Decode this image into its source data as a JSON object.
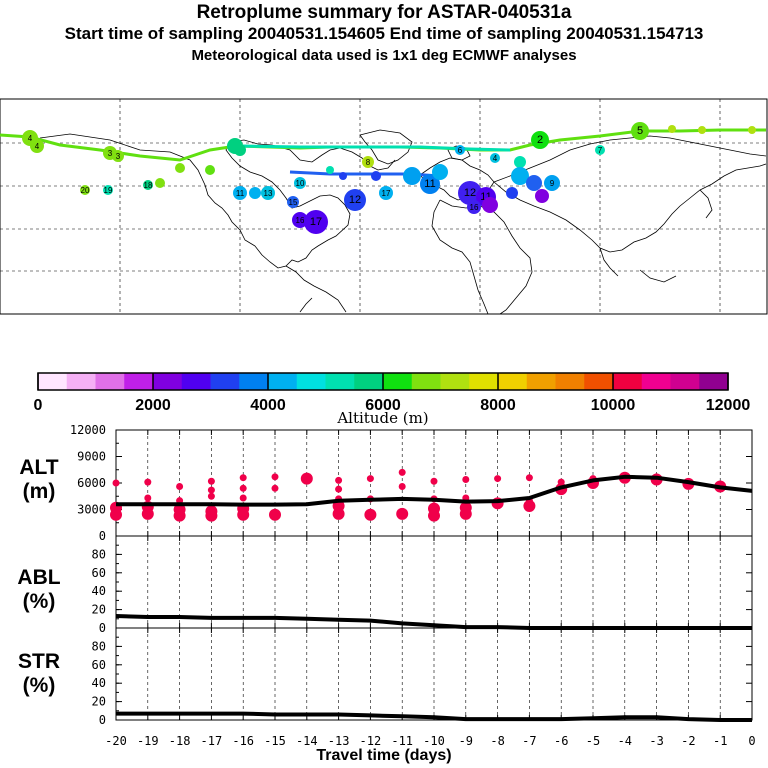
{
  "header": {
    "title": "Retroplume summary for ASTAR-040531a",
    "subtitle": "Start time of sampling 20040531.154605     End time of sampling 20040531.154713",
    "met_info": "Meteorological data used is 1x1 deg ECMWF analyses"
  },
  "colorbar": {
    "label": "Altitude (m)",
    "tick_labels": [
      "0",
      "2000",
      "4000",
      "6000",
      "8000",
      "10000",
      "12000"
    ],
    "colors": [
      "#ffe6ff",
      "#f5b0f5",
      "#e070e8",
      "#c020e8",
      "#8000e0",
      "#5000f0",
      "#2040f0",
      "#0080f0",
      "#00b0f0",
      "#00e0e0",
      "#00e0b0",
      "#00d080",
      "#10e010",
      "#80e010",
      "#b0e010",
      "#e0e000",
      "#f0d000",
      "#f0a000",
      "#f08000",
      "#f05000",
      "#f00040",
      "#f00090",
      "#d00090",
      "#900090"
    ]
  },
  "map": {
    "labels": [
      "4",
      "3",
      "2",
      "7",
      "5",
      "6",
      "4",
      "8",
      "9",
      "10",
      "11",
      "12",
      "13",
      "14",
      "15",
      "16",
      "17",
      "18",
      "19",
      "20"
    ]
  },
  "chart_data": [
    {
      "type": "line",
      "panel": "ALT",
      "ylabel": "ALT (m)",
      "ylim": [
        0,
        12000
      ],
      "yticks": [
        "0",
        "3000",
        "6000",
        "9000",
        "12000"
      ],
      "xlim": [
        -20,
        0
      ],
      "series": [
        {
          "name": "median altitude",
          "x": [
            -20,
            -19,
            -18,
            -17,
            -16,
            -15,
            -14,
            -13,
            -12,
            -11,
            -10,
            -9,
            -8,
            -7,
            -6,
            -5,
            -4,
            -3,
            -2,
            -1,
            0
          ],
          "values": [
            3600,
            3600,
            3600,
            3600,
            3550,
            3550,
            3600,
            4000,
            4100,
            4200,
            4100,
            3900,
            3950,
            4300,
            5500,
            6300,
            6700,
            6600,
            6100,
            5500,
            5100
          ]
        }
      ],
      "scatter_columns": [
        {
          "x": -20,
          "values": [
            2400,
            3200,
            6000
          ]
        },
        {
          "x": -19,
          "values": [
            2500,
            3300,
            4300,
            6100
          ]
        },
        {
          "x": -18,
          "values": [
            2300,
            3000,
            4000,
            5600
          ]
        },
        {
          "x": -17,
          "values": [
            2300,
            2800,
            4500,
            5200,
            6200
          ]
        },
        {
          "x": -16,
          "values": [
            2400,
            3100,
            4300,
            5400,
            6600
          ]
        },
        {
          "x": -15,
          "values": [
            2400,
            5400,
            6700
          ]
        },
        {
          "x": -14,
          "values": [
            6500
          ]
        },
        {
          "x": -13,
          "values": [
            2500,
            3400,
            4200,
            5300,
            6300
          ]
        },
        {
          "x": -12,
          "values": [
            2400,
            4200,
            6500
          ]
        },
        {
          "x": -11,
          "values": [
            2500,
            5600,
            7200
          ]
        },
        {
          "x": -10,
          "values": [
            2300,
            3100,
            4200,
            6200
          ]
        },
        {
          "x": -9,
          "values": [
            2500,
            3200,
            4300,
            6400
          ]
        },
        {
          "x": -8,
          "values": [
            3700,
            6500
          ]
        },
        {
          "x": -7,
          "values": [
            3400,
            4000,
            6600
          ]
        },
        {
          "x": -6,
          "values": [
            5300,
            6100
          ]
        },
        {
          "x": -5,
          "values": [
            6000,
            6500
          ]
        },
        {
          "x": -4,
          "values": [
            6600
          ]
        },
        {
          "x": -3,
          "values": [
            6400,
            6700
          ]
        },
        {
          "x": -2,
          "values": [
            5900
          ]
        },
        {
          "x": -1,
          "values": [
            5600
          ]
        }
      ]
    },
    {
      "type": "line",
      "panel": "ABL",
      "ylabel": "ABL (%)",
      "ylim": [
        0,
        100
      ],
      "yticks": [
        "0",
        "20",
        "40",
        "60",
        "80"
      ],
      "xlim": [
        -20,
        0
      ],
      "series": [
        {
          "name": "fraction in boundary layer",
          "x": [
            -20,
            -19,
            -18,
            -17,
            -16,
            -15,
            -14,
            -13,
            -12,
            -11,
            -10,
            -9,
            -8,
            -7,
            -6,
            -5,
            -4,
            -3,
            -2,
            -1,
            0
          ],
          "values": [
            13,
            12,
            12,
            11,
            11,
            11,
            10,
            9,
            8,
            5,
            3,
            1,
            1,
            0,
            0,
            0,
            0,
            0,
            0,
            0,
            0
          ]
        }
      ]
    },
    {
      "type": "line",
      "panel": "STR",
      "ylabel": "STR (%)",
      "ylim": [
        0,
        100
      ],
      "yticks": [
        "0",
        "20",
        "40",
        "60",
        "80"
      ],
      "xlim": [
        -20,
        0
      ],
      "xlabel": "Travel time (days)",
      "xticks": [
        "-20",
        "-19",
        "-18",
        "-17",
        "-16",
        "-15",
        "-14",
        "-13",
        "-12",
        "-11",
        "-10",
        "-9",
        "-8",
        "-7",
        "-6",
        "-5",
        "-4",
        "-3",
        "-2",
        "-1",
        "0"
      ],
      "series": [
        {
          "name": "fraction in stratosphere",
          "x": [
            -20,
            -19,
            -18,
            -17,
            -16,
            -15,
            -14,
            -13,
            -12,
            -11,
            -10,
            -9,
            -8,
            -7,
            -6,
            -5,
            -4,
            -3,
            -2,
            -1,
            0
          ],
          "values": [
            7,
            7,
            7,
            7,
            7,
            6,
            6,
            6,
            5,
            4,
            3,
            1,
            1,
            1,
            1,
            2,
            3,
            3,
            1,
            0,
            0
          ]
        }
      ]
    }
  ],
  "panel_labels": {
    "alt": [
      "ALT",
      "(m)"
    ],
    "abl": [
      "ABL",
      "(%)"
    ],
    "str": [
      "STR",
      "(%)"
    ]
  }
}
